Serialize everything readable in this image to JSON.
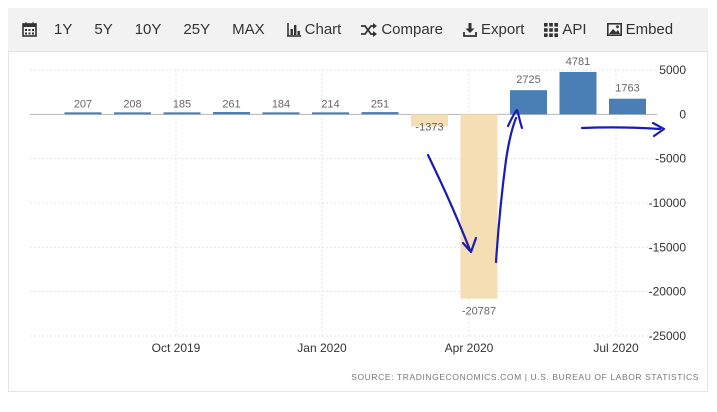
{
  "toolbar": {
    "ranges": [
      "1Y",
      "5Y",
      "10Y",
      "25Y",
      "MAX"
    ],
    "tools": [
      {
        "label": "Chart",
        "icon": "bar-chart-icon"
      },
      {
        "label": "Compare",
        "icon": "shuffle-icon"
      },
      {
        "label": "Export",
        "icon": "download-icon"
      },
      {
        "label": "API",
        "icon": "grid-icon"
      },
      {
        "label": "Embed",
        "icon": "image-icon"
      }
    ]
  },
  "chart_data": {
    "type": "bar",
    "ylim": [
      -25000,
      5000
    ],
    "yticks": [
      5000,
      0,
      -5000,
      -10000,
      -15000,
      -20000,
      -25000
    ],
    "ytick_labels": [
      "5000",
      "0",
      "-5000",
      "-10000",
      "-15000",
      "-20000",
      "-25000"
    ],
    "xtick_labels": [
      "Oct 2019",
      "Jan 2020",
      "Apr 2020",
      "Jul 2020"
    ],
    "grid": true,
    "values": [
      207,
      208,
      185,
      261,
      184,
      214,
      251,
      -1373,
      -20787,
      2725,
      4781,
      1763
    ],
    "data_labels": [
      "207",
      "208",
      "185",
      "261",
      "184",
      "214",
      "251",
      "-1373",
      "-20787",
      "2725",
      "4781",
      "1763"
    ],
    "colors": {
      "positive": "#4a7fb5",
      "negative": "#f5deb3"
    },
    "annotations": "hand-drawn blue arrows: down into the April 2020 drop, back up toward May/June, then right past the zero line"
  },
  "source": "SOURCE: TRADINGECONOMICS.COM | U.S. BUREAU OF LABOR STATISTICS"
}
